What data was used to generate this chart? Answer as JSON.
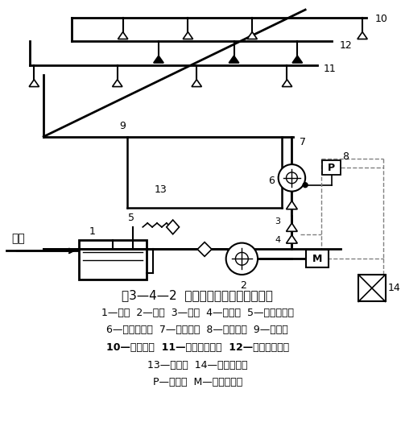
{
  "title": "图3—4—2  传动管启动水喷雾灭火系统",
  "legend_lines": [
    "1—水池  2—水泵  3—闸阀  4—止回阀  5—水泵接合器",
    "6—雨淋报警阀  7—配水干管  8—压力开关  9—配水管",
    "10—配水支管  11—开式洒水喷头  12—闭式洒水喷头",
    "13—传动管  14—报警控制器",
    "P—压力表  M—驱动电动机"
  ],
  "bg_color": "#ffffff",
  "line_color": "#000000",
  "dashed_color": "#888888"
}
